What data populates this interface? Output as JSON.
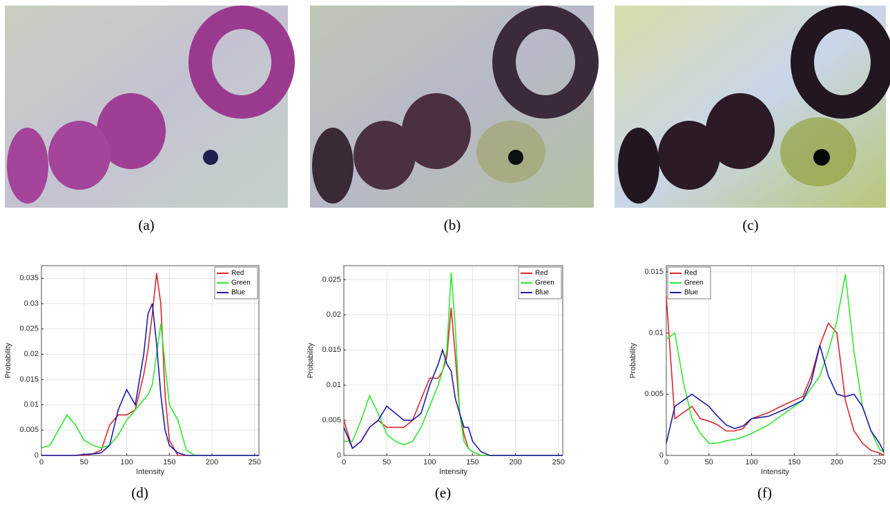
{
  "images": [
    {
      "caption": "(a)"
    },
    {
      "caption": "(b)"
    },
    {
      "caption": "(c)"
    }
  ],
  "chart_data": [
    {
      "type": "line",
      "caption": "(d)",
      "x_label": "Intensity",
      "y_label": "Probability",
      "x": [
        0,
        10,
        20,
        30,
        40,
        50,
        60,
        70,
        80,
        90,
        100,
        110,
        120,
        125,
        130,
        135,
        140,
        145,
        150,
        160,
        170,
        180,
        200,
        220,
        240,
        255
      ],
      "series": [
        {
          "name": "Red",
          "color": "#d62728",
          "values": [
            0,
            0,
            0,
            0,
            0,
            0,
            0.0003,
            0.001,
            0.006,
            0.008,
            0.008,
            0.009,
            0.016,
            0.021,
            0.028,
            0.036,
            0.03,
            0.012,
            0.003,
            0,
            0,
            0,
            0,
            0,
            0,
            0
          ]
        },
        {
          "name": "Green",
          "color": "#2ee82e",
          "values": [
            0.0015,
            0.002,
            0.005,
            0.008,
            0.006,
            0.003,
            0.002,
            0.0015,
            0.002,
            0.004,
            0.007,
            0.009,
            0.011,
            0.012,
            0.014,
            0.02,
            0.026,
            0.018,
            0.01,
            0.007,
            0.001,
            0,
            0,
            0,
            0,
            0
          ]
        },
        {
          "name": "Blue",
          "color": "#1a1aa6",
          "values": [
            0,
            0,
            0,
            0,
            0,
            0.0002,
            0.0003,
            0.0005,
            0.002,
            0.009,
            0.013,
            0.01,
            0.02,
            0.028,
            0.03,
            0.022,
            0.012,
            0.005,
            0.002,
            0.0005,
            0,
            0,
            0,
            0,
            0,
            0
          ]
        }
      ],
      "xlim": [
        0,
        255
      ],
      "xticks": [
        0,
        50,
        100,
        150,
        200,
        250
      ],
      "ylim": [
        0,
        0.0375
      ],
      "yticks": [
        0,
        0.005,
        0.01,
        0.015,
        0.02,
        0.025,
        0.03,
        0.035
      ],
      "grid": true,
      "legend": "top-right"
    },
    {
      "type": "line",
      "caption": "(e)",
      "x_label": "Intensity",
      "y_label": "Probability",
      "x": [
        0,
        10,
        20,
        30,
        40,
        50,
        60,
        70,
        80,
        90,
        100,
        110,
        115,
        120,
        125,
        130,
        135,
        140,
        145,
        150,
        160,
        170,
        180,
        200,
        220,
        240,
        255
      ],
      "series": [
        {
          "name": "Red",
          "color": "#d62728",
          "values": [
            0.005,
            0.001,
            0.002,
            0.004,
            0.005,
            0.004,
            0.004,
            0.004,
            0.005,
            0.008,
            0.011,
            0.011,
            0.012,
            0.014,
            0.021,
            0.014,
            0.006,
            0.003,
            0.001,
            0.0005,
            0,
            0,
            0,
            0,
            0,
            0,
            0
          ]
        },
        {
          "name": "Green",
          "color": "#2ee82e",
          "values": [
            0.002,
            0.002,
            0.005,
            0.0085,
            0.006,
            0.003,
            0.002,
            0.0015,
            0.002,
            0.004,
            0.007,
            0.01,
            0.012,
            0.015,
            0.026,
            0.018,
            0.006,
            0.002,
            0.001,
            0.0005,
            0,
            0,
            0,
            0,
            0,
            0,
            0
          ]
        },
        {
          "name": "Blue",
          "color": "#1a1aa6",
          "values": [
            0.004,
            0.001,
            0.002,
            0.004,
            0.005,
            0.007,
            0.006,
            0.005,
            0.005,
            0.006,
            0.01,
            0.013,
            0.015,
            0.013,
            0.012,
            0.008,
            0.006,
            0.004,
            0.004,
            0.002,
            0.0005,
            0,
            0,
            0,
            0,
            0,
            0
          ]
        }
      ],
      "xlim": [
        0,
        255
      ],
      "xticks": [
        0,
        50,
        100,
        150,
        200,
        250
      ],
      "ylim": [
        0,
        0.027
      ],
      "yticks": [
        0,
        0.005,
        0.01,
        0.015,
        0.02,
        0.025
      ],
      "grid": true,
      "legend": "top-right"
    },
    {
      "type": "line",
      "caption": "(f)",
      "x_label": "Intensity",
      "y_label": "Probability",
      "x": [
        0,
        10,
        20,
        30,
        40,
        50,
        60,
        70,
        80,
        90,
        100,
        120,
        140,
        160,
        170,
        180,
        190,
        200,
        210,
        220,
        230,
        240,
        250,
        255
      ],
      "series": [
        {
          "name": "Red",
          "color": "#d62728",
          "values": [
            0.013,
            0.003,
            0.0035,
            0.004,
            0.003,
            0.0028,
            0.0025,
            0.002,
            0.002,
            0.0022,
            0.003,
            0.0035,
            0.0042,
            0.0048,
            0.0065,
            0.009,
            0.0108,
            0.01,
            0.0045,
            0.002,
            0.001,
            0.0004,
            0.0002,
            0
          ]
        },
        {
          "name": "Green",
          "color": "#2ee82e",
          "values": [
            0.0095,
            0.01,
            0.006,
            0.003,
            0.0018,
            0.001,
            0.001,
            0.0012,
            0.0013,
            0.0015,
            0.0018,
            0.0025,
            0.0035,
            0.0045,
            0.0055,
            0.0065,
            0.0085,
            0.011,
            0.0148,
            0.0085,
            0.004,
            0.002,
            0.0005,
            0.0003
          ]
        },
        {
          "name": "Blue",
          "color": "#1a1aa6",
          "values": [
            0.001,
            0.004,
            0.0045,
            0.005,
            0.0045,
            0.004,
            0.0032,
            0.0025,
            0.0022,
            0.0024,
            0.003,
            0.0032,
            0.0038,
            0.0045,
            0.006,
            0.009,
            0.0065,
            0.005,
            0.0048,
            0.005,
            0.004,
            0.002,
            0.001,
            0.0003
          ]
        }
      ],
      "xlim": [
        0,
        255
      ],
      "xticks": [
        0,
        50,
        100,
        150,
        200,
        250
      ],
      "ylim": [
        0,
        0.0155
      ],
      "yticks": [
        0,
        0.005,
        0.01,
        0.015
      ],
      "grid": true,
      "legend": "top-left"
    }
  ]
}
